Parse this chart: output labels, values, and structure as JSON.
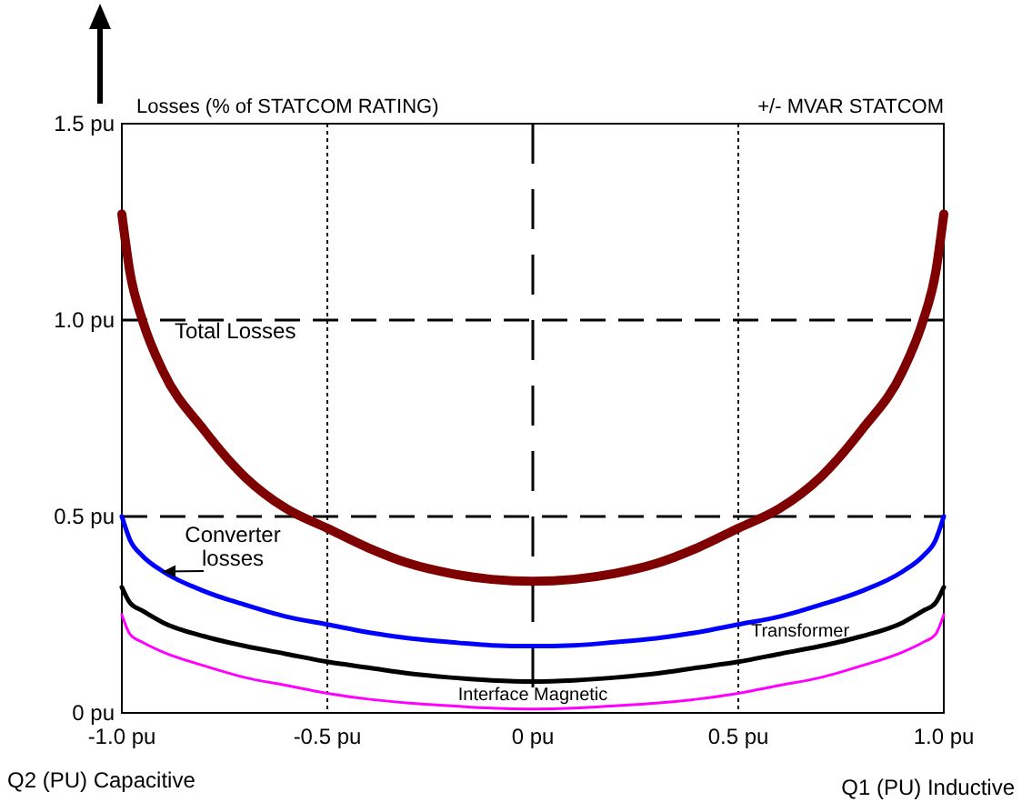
{
  "chart_data": {
    "type": "line",
    "ylabel": "Losses (% of STATCOM RATING)",
    "xlabel": "Q1 (PU) Inductive",
    "annotations": [
      "+/- MVAR STATCOM",
      "Q2 (PU) Capacitive"
    ],
    "x": [
      -1,
      -0.98,
      -0.95,
      -0.9,
      -0.8,
      -0.7,
      -0.6,
      -0.5,
      -0.4,
      -0.3,
      -0.2,
      -0.1,
      0,
      0.1,
      0.2,
      0.3,
      0.4,
      0.5,
      0.6,
      0.7,
      0.8,
      0.9,
      0.95,
      0.98,
      1
    ],
    "series": [
      {
        "name": "Total Losses",
        "color": "#7f0000",
        "values": [
          1.27,
          1.12,
          1.0,
          0.87,
          0.72,
          0.6,
          0.52,
          0.47,
          0.42,
          0.38,
          0.355,
          0.34,
          0.335,
          0.34,
          0.355,
          0.38,
          0.42,
          0.47,
          0.52,
          0.6,
          0.72,
          0.87,
          1.0,
          1.12,
          1.27
        ]
      },
      {
        "name": "Converter losses",
        "color": "#0000ff",
        "values": [
          0.5,
          0.44,
          0.4,
          0.36,
          0.31,
          0.275,
          0.245,
          0.225,
          0.205,
          0.19,
          0.18,
          0.172,
          0.17,
          0.172,
          0.18,
          0.19,
          0.205,
          0.225,
          0.245,
          0.275,
          0.31,
          0.36,
          0.4,
          0.44,
          0.5
        ]
      },
      {
        "name": "Transformer",
        "color": "#000000",
        "values": [
          0.32,
          0.28,
          0.26,
          0.23,
          0.195,
          0.17,
          0.15,
          0.13,
          0.115,
          0.1,
          0.09,
          0.083,
          0.08,
          0.083,
          0.09,
          0.1,
          0.115,
          0.13,
          0.15,
          0.17,
          0.195,
          0.23,
          0.26,
          0.28,
          0.32
        ]
      },
      {
        "name": "Interface Magnetic",
        "color": "#ff00ff",
        "values": [
          0.25,
          0.2,
          0.18,
          0.155,
          0.12,
          0.09,
          0.07,
          0.05,
          0.035,
          0.025,
          0.018,
          0.012,
          0.01,
          0.012,
          0.018,
          0.025,
          0.035,
          0.05,
          0.07,
          0.09,
          0.12,
          0.155,
          0.18,
          0.2,
          0.25
        ]
      }
    ],
    "xlim": [
      -1,
      1
    ],
    "ylim": [
      0,
      1.5
    ],
    "xticks": [
      {
        "value": -1,
        "label": "-1.0 pu"
      },
      {
        "value": -0.5,
        "label": "-0.5 pu"
      },
      {
        "value": 0,
        "label": "0 pu"
      },
      {
        "value": 0.5,
        "label": "0.5 pu"
      },
      {
        "value": 1,
        "label": "1.0 pu"
      }
    ],
    "yticks": [
      {
        "value": 0,
        "label": "0 pu"
      },
      {
        "value": 0.5,
        "label": "0.5 pu"
      },
      {
        "value": 1,
        "label": "1.0 pu"
      },
      {
        "value": 1.5,
        "label": "1.5 pu"
      }
    ],
    "ref_lines": [
      {
        "axis": "y",
        "value": 0.5,
        "line_style": "dashed"
      },
      {
        "axis": "y",
        "value": 1,
        "line_style": "dashed"
      },
      {
        "axis": "x",
        "value": 0,
        "line_style": "dashed"
      },
      {
        "axis": "x",
        "value": -0.5,
        "line_style": "dotted"
      },
      {
        "axis": "x",
        "value": 0.5,
        "line_style": "dotted"
      }
    ],
    "grid": false,
    "legend": false,
    "marker": "none",
    "line_style": "solid"
  }
}
